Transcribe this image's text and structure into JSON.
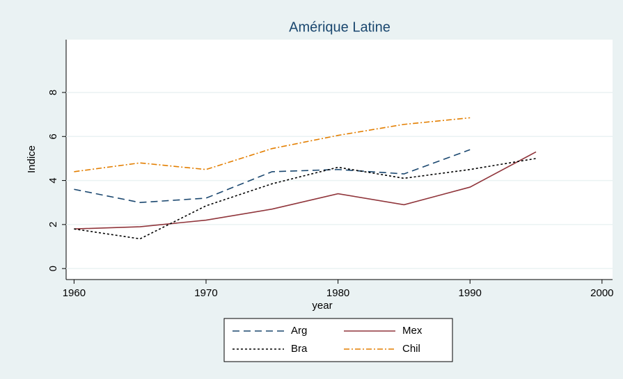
{
  "chart_data": {
    "type": "line",
    "title": "Amérique Latine",
    "xlabel": "year",
    "ylabel": "Indice",
    "x": [
      1960,
      1965,
      1970,
      1975,
      1980,
      1985,
      1990,
      1995
    ],
    "series": [
      {
        "name": "Arg",
        "color": "#1a476f",
        "dash": "10 6",
        "values": [
          3.6,
          3.0,
          3.2,
          4.4,
          4.5,
          4.3,
          5.4,
          null
        ]
      },
      {
        "name": "Mex",
        "color": "#90353b",
        "dash": "none",
        "values": [
          1.8,
          1.9,
          2.2,
          2.7,
          3.4,
          2.9,
          3.7,
          5.3
        ]
      },
      {
        "name": "Bra",
        "color": "#000000",
        "dash": "3 3",
        "values": [
          1.8,
          1.35,
          2.85,
          3.85,
          4.6,
          4.1,
          4.5,
          5.0
        ]
      },
      {
        "name": "Chil",
        "color": "#e37e00",
        "dash": "8 3 2 3",
        "values": [
          4.4,
          4.8,
          4.5,
          5.45,
          6.05,
          6.55,
          6.85,
          null
        ]
      }
    ],
    "xlim": [
      1959.4,
      2000.8
    ],
    "xticks": [
      1960,
      1970,
      1980,
      1990,
      2000
    ],
    "ylim": [
      -0.5,
      10.4
    ],
    "yticks": [
      0,
      2,
      4,
      6,
      8
    ],
    "grid": true
  }
}
